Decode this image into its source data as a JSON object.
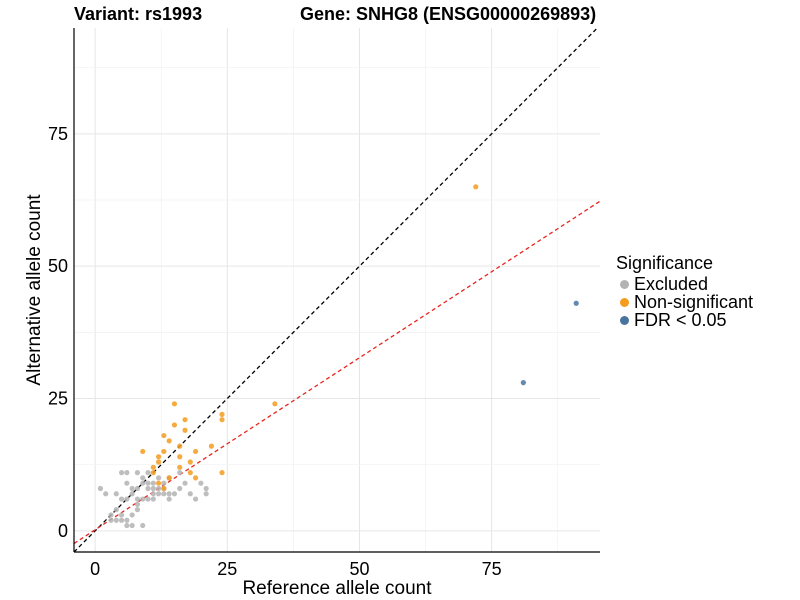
{
  "header": {
    "variant_title": "Variant: rs1993",
    "gene_title": "Gene: SNHG8 (ENSG00000269893)"
  },
  "chart_data": {
    "type": "scatter",
    "xlabel": "Reference allele count",
    "ylabel": "Alternative allele count",
    "xlim": [
      -4,
      95.5
    ],
    "ylim": [
      -4,
      95
    ],
    "xticks": [
      0,
      25,
      50,
      75
    ],
    "yticks": [
      0,
      25,
      50,
      75
    ],
    "grid": true,
    "legend": {
      "title": "Significance",
      "placement": "right",
      "entries": [
        {
          "label": "Excluded",
          "color": "#b3b3b3"
        },
        {
          "label": "Non-significant",
          "color": "#f39c1e"
        },
        {
          "label": "FDR < 0.05",
          "color": "#4a74a0"
        }
      ]
    },
    "reference_lines": [
      {
        "name": "identity",
        "slope": 1,
        "intercept": 0,
        "color": "#000000",
        "style": "dashed"
      },
      {
        "name": "fit",
        "slope": 0.65,
        "intercept": 0.2,
        "color": "#e8251f",
        "style": "dashed"
      }
    ],
    "series": [
      {
        "name": "Excluded",
        "color": "#b3b3b3",
        "points": [
          [
            1,
            8
          ],
          [
            2,
            7
          ],
          [
            3,
            2
          ],
          [
            3,
            3
          ],
          [
            4,
            2
          ],
          [
            4,
            4
          ],
          [
            4,
            7
          ],
          [
            5,
            2
          ],
          [
            5,
            3
          ],
          [
            5,
            6
          ],
          [
            5,
            11
          ],
          [
            6,
            1
          ],
          [
            6,
            2
          ],
          [
            6,
            6
          ],
          [
            6,
            9
          ],
          [
            6,
            11
          ],
          [
            7,
            1
          ],
          [
            7,
            3
          ],
          [
            7,
            7
          ],
          [
            7,
            8
          ],
          [
            8,
            4
          ],
          [
            8,
            5
          ],
          [
            8,
            6
          ],
          [
            8,
            8
          ],
          [
            8,
            11
          ],
          [
            9,
            1
          ],
          [
            9,
            6
          ],
          [
            9,
            9
          ],
          [
            9,
            10
          ],
          [
            10,
            6
          ],
          [
            10,
            8
          ],
          [
            10,
            9
          ],
          [
            10,
            11
          ],
          [
            11,
            6
          ],
          [
            11,
            7
          ],
          [
            11,
            8
          ],
          [
            11,
            9
          ],
          [
            12,
            7
          ],
          [
            12,
            8
          ],
          [
            12,
            10
          ],
          [
            13,
            7
          ],
          [
            13,
            8
          ],
          [
            13,
            9
          ],
          [
            14,
            6
          ],
          [
            14,
            7
          ],
          [
            14,
            10
          ],
          [
            15,
            7
          ],
          [
            16,
            8
          ],
          [
            16,
            11
          ],
          [
            17,
            9
          ],
          [
            18,
            7
          ],
          [
            19,
            6
          ],
          [
            20,
            9
          ],
          [
            21,
            8
          ],
          [
            21,
            7
          ]
        ]
      },
      {
        "name": "Non-significant",
        "color": "#f39c1e",
        "points": [
          [
            9,
            15
          ],
          [
            11,
            11
          ],
          [
            11,
            12
          ],
          [
            12,
            13
          ],
          [
            12,
            14
          ],
          [
            12,
            9
          ],
          [
            13,
            8
          ],
          [
            13,
            15
          ],
          [
            13,
            18
          ],
          [
            14,
            10
          ],
          [
            14,
            17
          ],
          [
            15,
            20
          ],
          [
            15,
            24
          ],
          [
            16,
            12
          ],
          [
            16,
            14
          ],
          [
            16,
            16
          ],
          [
            17,
            19
          ],
          [
            17,
            21
          ],
          [
            18,
            11
          ],
          [
            18,
            13
          ],
          [
            19,
            10
          ],
          [
            19,
            15
          ],
          [
            22,
            16
          ],
          [
            24,
            11
          ],
          [
            24,
            21
          ],
          [
            24,
            22
          ],
          [
            34,
            24
          ],
          [
            72,
            65
          ]
        ]
      },
      {
        "name": "FDR < 0.05",
        "color": "#4a74a0",
        "points": [
          [
            81,
            28
          ],
          [
            91,
            43
          ]
        ]
      }
    ]
  }
}
